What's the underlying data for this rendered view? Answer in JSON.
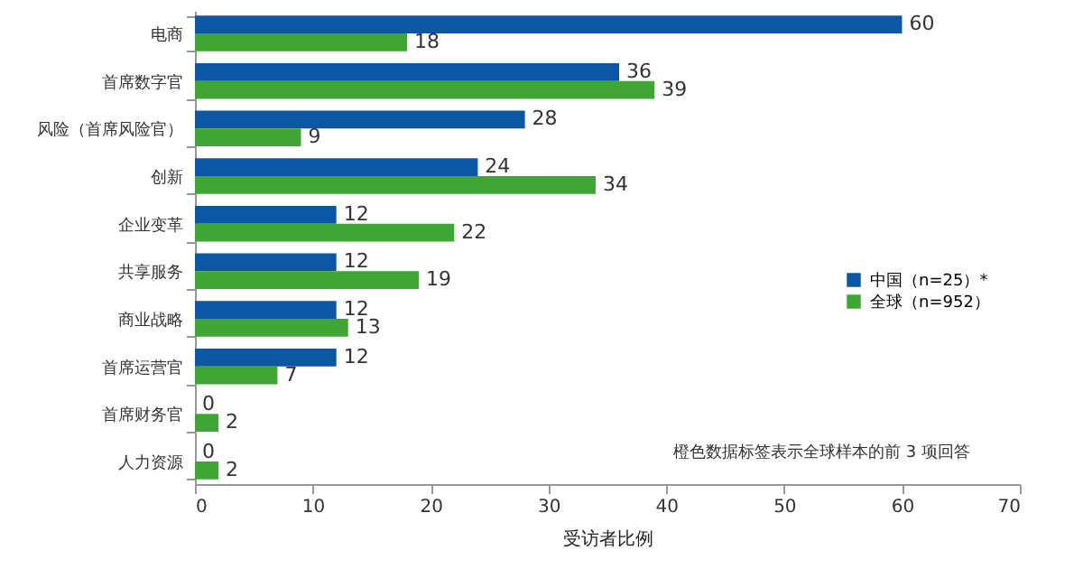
{
  "chart_data": {
    "type": "bar",
    "orientation": "horizontal",
    "xlabel": "受访者比例",
    "categories": [
      "电商",
      "首席数字官",
      "风险（首席风险官）",
      "创新",
      "企业变革",
      "共享服务",
      "商业战略",
      "首席运营官",
      "首席财务官",
      "人力资源"
    ],
    "series": [
      {
        "name": "中国（n=25）*",
        "color": "#0b57a4",
        "values": [
          60,
          36,
          28,
          24,
          12,
          12,
          12,
          12,
          0,
          0
        ]
      },
      {
        "name": "全球（n=952）",
        "color": "#3fa535",
        "values": [
          18,
          39,
          9,
          34,
          22,
          19,
          13,
          7,
          2,
          2
        ]
      }
    ],
    "xlim": [
      0,
      70
    ],
    "xticks": [
      0,
      10,
      20,
      30,
      40,
      50,
      60,
      70
    ],
    "grid": false,
    "legend": "right",
    "data_labels": true,
    "annotations": [
      "橙色数据标签表示全球样本的前 3 项回答"
    ]
  }
}
